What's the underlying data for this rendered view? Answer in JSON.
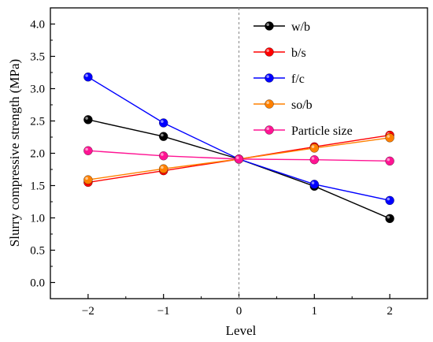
{
  "chart_data": {
    "type": "line",
    "title": "",
    "xlabel": "Level",
    "ylabel": "Slurry compressive strength (MPa)",
    "x": [
      -2,
      -1,
      0,
      1,
      2
    ],
    "x_tick_labels": [
      "−2",
      "−1",
      "0",
      "1",
      "2"
    ],
    "xlim": [
      -2.5,
      2.5
    ],
    "ylim": [
      -0.25,
      4.25
    ],
    "y_ticks": [
      0.0,
      0.5,
      1.0,
      1.5,
      2.0,
      2.5,
      3.0,
      3.5,
      4.0
    ],
    "y_tick_labels": [
      "0.0",
      "0.5",
      "1.0",
      "1.5",
      "2.0",
      "2.5",
      "3.0",
      "3.5",
      "4.0"
    ],
    "reference_line_x": 0,
    "grid": false,
    "legend_position": "top-right",
    "series": [
      {
        "name": "w/b",
        "color": "#000000",
        "values": [
          2.52,
          2.26,
          1.91,
          1.49,
          0.99
        ]
      },
      {
        "name": "b/s",
        "color": "#ff0000",
        "values": [
          1.55,
          1.73,
          1.91,
          2.1,
          2.28
        ]
      },
      {
        "name": "f/c",
        "color": "#0000ff",
        "values": [
          3.18,
          2.47,
          1.91,
          1.52,
          1.27
        ]
      },
      {
        "name": "so/b",
        "color": "#ff8000",
        "values": [
          1.59,
          1.76,
          1.91,
          2.08,
          2.24
        ]
      },
      {
        "name": "Particle size",
        "color": "#ff1493",
        "values": [
          2.04,
          1.96,
          1.91,
          1.9,
          1.88
        ]
      }
    ]
  }
}
